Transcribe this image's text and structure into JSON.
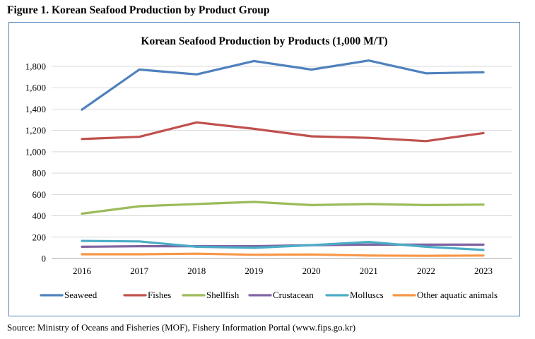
{
  "figure_title": "Figure 1. Korean Seafood Production by Product Group",
  "source_note": "Source:  Ministry of Oceans and Fisheries (MOF), Fishery Information Portal (www.fips.go.kr)",
  "chart_data": {
    "type": "line",
    "title": "Korean Seafood Production by Products (1,000 M/T)",
    "xlabel": "",
    "ylabel": "",
    "x": [
      "2016",
      "2017",
      "2018",
      "2019",
      "2020",
      "2021",
      "2022",
      "2023"
    ],
    "ylim": [
      0,
      1800
    ],
    "yticks": [
      0,
      200,
      400,
      600,
      800,
      1000,
      1200,
      1400,
      1600,
      1800
    ],
    "ytick_labels": [
      "0",
      "200",
      "400",
      "600",
      "800",
      "1,000",
      "1,200",
      "1,400",
      "1,600",
      "1,800"
    ],
    "grid": true,
    "legend_position": "bottom",
    "series": [
      {
        "name": "Seaweed",
        "color": "#4f81bd",
        "values": [
          1395,
          1770,
          1725,
          1850,
          1770,
          1855,
          1735,
          1745
        ]
      },
      {
        "name": "Fishes",
        "color": "#c0504d",
        "values": [
          1120,
          1140,
          1275,
          1215,
          1145,
          1130,
          1100,
          1175
        ]
      },
      {
        "name": "Shellfish",
        "color": "#9bbb59",
        "values": [
          420,
          490,
          510,
          530,
          500,
          510,
          500,
          505
        ]
      },
      {
        "name": "Crustacean",
        "color": "#8064a2",
        "values": [
          110,
          115,
          115,
          115,
          125,
          130,
          130,
          130
        ]
      },
      {
        "name": "Molluscs",
        "color": "#4bacc6",
        "values": [
          165,
          160,
          110,
          100,
          125,
          155,
          110,
          80
        ]
      },
      {
        "name": "Other aquatic animals",
        "color": "#f79646",
        "values": [
          40,
          40,
          45,
          35,
          38,
          28,
          25,
          28
        ]
      }
    ]
  }
}
